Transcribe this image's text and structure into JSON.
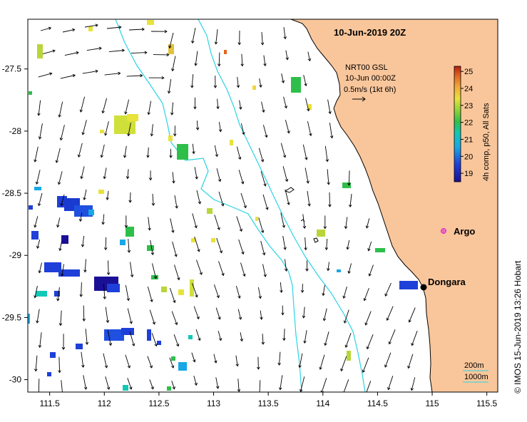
{
  "map": {
    "title": "10-Jun-2019 20Z",
    "x_ticks": [
      "111.5",
      "112",
      "112.5",
      "113",
      "113.5",
      "114",
      "114.5",
      "115",
      "115.5"
    ],
    "y_ticks": [
      "-27.5",
      "-28",
      "-28.5",
      "-29",
      "-29.5",
      "-30"
    ],
    "x_range": [
      111.3,
      115.6
    ],
    "y_range": [
      -30.1,
      -27.1
    ],
    "legend": {
      "line1": "NRT00 GSL",
      "line2": "10-Jun 00:00Z",
      "line3": "0.5m/s (1kt 6h)"
    },
    "colorbar": {
      "label": "4h comp, p50, All Sats",
      "ticks": [
        "25",
        "24",
        "23",
        "22",
        "21",
        "20",
        "19"
      ],
      "range": [
        18.5,
        25.3
      ]
    },
    "places": {
      "dongara": "Dongara",
      "argo": "Argo"
    },
    "isobaths": {
      "label_200": "200m",
      "label_1000": "1000m"
    },
    "credit": "© IMOS 15-Jun-2019 13:26 Hobart",
    "colors": {
      "land": "#f9c69b",
      "isobath": "#29d4e4",
      "argo": "#e020e0",
      "arrow": "#000000"
    }
  }
}
